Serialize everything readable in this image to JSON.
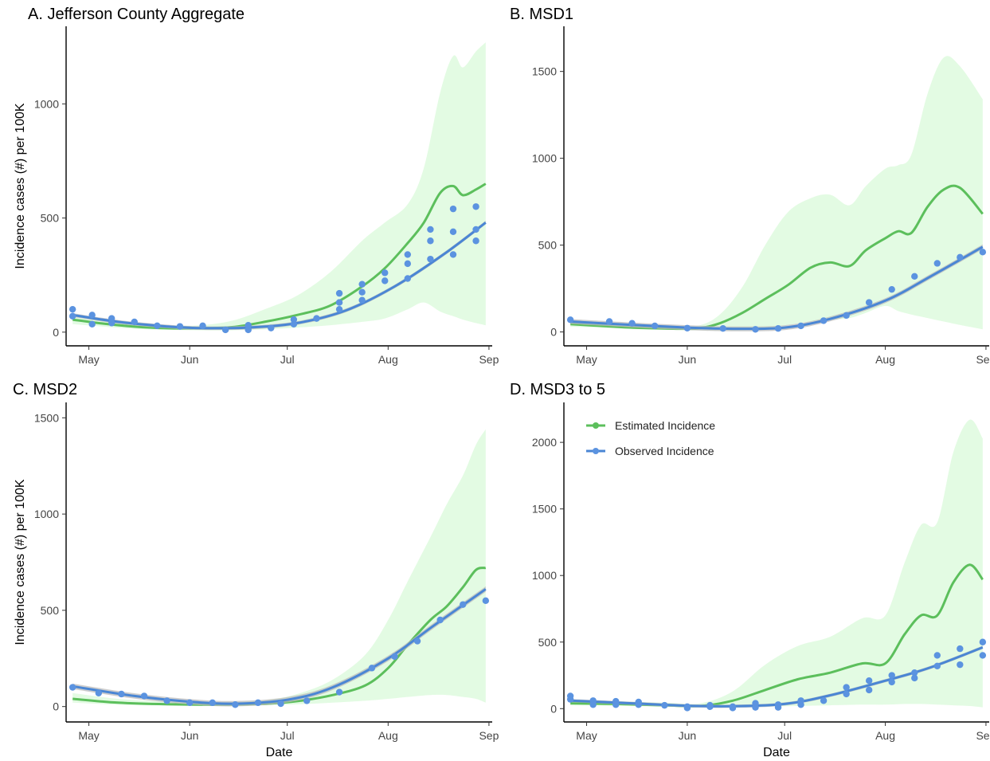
{
  "colors": {
    "estimated": "#5cbf5c",
    "observed": "#4a86d4",
    "observed_points": "#5b93e0",
    "band": "#e3fbe3",
    "ci": "#b8b8b8"
  },
  "legend": {
    "estimated_label": "Estimated Incidence",
    "observed_label": "Observed Incidence"
  },
  "chart_data": [
    {
      "type": "line",
      "title": "A. Jefferson County Aggregate",
      "xlabel": "",
      "ylabel": "Incidence cases (#) per 100K",
      "x_ticks": [
        "May",
        "Jun",
        "Jul",
        "Aug",
        "Sep"
      ],
      "y_ticks": [
        0,
        500,
        1000
      ],
      "xlim": [
        "2020-04-24",
        "2020-09-02"
      ],
      "ylim": [
        -60,
        1340
      ],
      "series": [
        {
          "name": "Estimated Incidence",
          "kind": "line",
          "x": [
            "2020-04-26",
            "2020-05-05",
            "2020-05-15",
            "2020-05-25",
            "2020-06-04",
            "2020-06-14",
            "2020-06-24",
            "2020-07-04",
            "2020-07-14",
            "2020-07-24",
            "2020-07-31",
            "2020-08-07",
            "2020-08-12",
            "2020-08-17",
            "2020-08-21",
            "2020-08-24",
            "2020-08-28",
            "2020-08-31"
          ],
          "y": [
            55,
            38,
            24,
            17,
            17,
            22,
            45,
            75,
            115,
            200,
            280,
            390,
            480,
            610,
            640,
            600,
            625,
            650
          ],
          "band_lower": [
            35,
            25,
            15,
            10,
            8,
            8,
            12,
            20,
            30,
            45,
            60,
            100,
            130,
            90,
            70,
            55,
            40,
            30
          ],
          "band_upper": [
            80,
            60,
            40,
            30,
            30,
            50,
            100,
            160,
            260,
            400,
            480,
            560,
            720,
            1050,
            1210,
            1160,
            1230,
            1270
          ]
        },
        {
          "name": "Observed Incidence",
          "kind": "smooth",
          "x": [
            "2020-04-26",
            "2020-05-10",
            "2020-05-25",
            "2020-06-04",
            "2020-06-19",
            "2020-07-04",
            "2020-07-19",
            "2020-08-03",
            "2020-08-18",
            "2020-08-31"
          ],
          "y": [
            75,
            45,
            25,
            18,
            20,
            40,
            95,
            200,
            340,
            480
          ],
          "ci_halfwidth": 8
        },
        {
          "name": "Observed Incidence",
          "kind": "points",
          "x": [
            "2020-04-26",
            "2020-04-26",
            "2020-05-02",
            "2020-05-02",
            "2020-05-08",
            "2020-05-08",
            "2020-05-15",
            "2020-05-22",
            "2020-05-29",
            "2020-06-05",
            "2020-06-12",
            "2020-06-19",
            "2020-06-19",
            "2020-06-26",
            "2020-07-03",
            "2020-07-03",
            "2020-07-10",
            "2020-07-17",
            "2020-07-17",
            "2020-07-17",
            "2020-07-24",
            "2020-07-24",
            "2020-07-24",
            "2020-07-31",
            "2020-07-31",
            "2020-08-07",
            "2020-08-07",
            "2020-08-07",
            "2020-08-14",
            "2020-08-14",
            "2020-08-14",
            "2020-08-21",
            "2020-08-21",
            "2020-08-21",
            "2020-08-28",
            "2020-08-28",
            "2020-08-28"
          ],
          "y": [
            100,
            70,
            75,
            35,
            60,
            40,
            45,
            28,
            25,
            28,
            10,
            30,
            10,
            18,
            55,
            35,
            60,
            170,
            130,
            100,
            210,
            175,
            140,
            260,
            225,
            340,
            300,
            235,
            450,
            400,
            320,
            540,
            440,
            340,
            550,
            450,
            400
          ]
        }
      ]
    },
    {
      "type": "line",
      "title": "B. MSD1",
      "xlabel": "",
      "ylabel": "",
      "x_ticks": [
        "May",
        "Jun",
        "Jul",
        "Aug",
        "Sep"
      ],
      "y_ticks": [
        0,
        500,
        1000,
        1500
      ],
      "xlim": [
        "2020-04-24",
        "2020-09-02"
      ],
      "ylim": [
        -80,
        1760
      ],
      "series": [
        {
          "name": "Estimated Incidence",
          "kind": "line",
          "x": [
            "2020-04-26",
            "2020-05-05",
            "2020-05-15",
            "2020-05-25",
            "2020-06-04",
            "2020-06-11",
            "2020-06-18",
            "2020-06-25",
            "2020-07-02",
            "2020-07-09",
            "2020-07-15",
            "2020-07-21",
            "2020-07-26",
            "2020-08-01",
            "2020-08-05",
            "2020-08-09",
            "2020-08-14",
            "2020-08-19",
            "2020-08-24",
            "2020-08-31"
          ],
          "y": [
            45,
            35,
            25,
            20,
            20,
            50,
            110,
            190,
            270,
            370,
            400,
            380,
            470,
            540,
            580,
            570,
            720,
            820,
            830,
            680
          ],
          "band_lower": [
            30,
            25,
            18,
            14,
            10,
            8,
            10,
            20,
            40,
            60,
            70,
            80,
            110,
            150,
            120,
            100,
            80,
            60,
            40,
            15
          ],
          "band_upper": [
            60,
            50,
            40,
            35,
            35,
            100,
            260,
            500,
            690,
            770,
            790,
            730,
            840,
            940,
            960,
            1020,
            1370,
            1580,
            1530,
            1340
          ]
        },
        {
          "name": "Observed Incidence",
          "kind": "smooth",
          "x": [
            "2020-04-26",
            "2020-05-15",
            "2020-06-01",
            "2020-06-15",
            "2020-07-01",
            "2020-07-15",
            "2020-08-01",
            "2020-08-15",
            "2020-08-31"
          ],
          "y": [
            60,
            40,
            25,
            18,
            25,
            75,
            180,
            320,
            490
          ],
          "ci_halfwidth": 14
        },
        {
          "name": "Observed Incidence",
          "kind": "points",
          "x": [
            "2020-04-26",
            "2020-05-08",
            "2020-05-15",
            "2020-05-22",
            "2020-06-01",
            "2020-06-12",
            "2020-06-22",
            "2020-06-29",
            "2020-07-06",
            "2020-07-13",
            "2020-07-20",
            "2020-07-27",
            "2020-08-03",
            "2020-08-10",
            "2020-08-17",
            "2020-08-24",
            "2020-08-31"
          ],
          "y": [
            70,
            60,
            50,
            35,
            22,
            20,
            15,
            20,
            35,
            65,
            95,
            170,
            245,
            320,
            395,
            430,
            460
          ]
        }
      ]
    },
    {
      "type": "line",
      "title": "C. MSD2",
      "xlabel": "Date",
      "ylabel": "Incidence cases (#) per 100K",
      "x_ticks": [
        "May",
        "Jun",
        "Jul",
        "Aug",
        "Sep"
      ],
      "y_ticks": [
        0,
        500,
        1000,
        1500
      ],
      "xlim": [
        "2020-04-24",
        "2020-09-02"
      ],
      "ylim": [
        -80,
        1580
      ],
      "series": [
        {
          "name": "Estimated Incidence",
          "kind": "line",
          "x": [
            "2020-04-26",
            "2020-05-10",
            "2020-05-25",
            "2020-06-10",
            "2020-06-25",
            "2020-07-05",
            "2020-07-15",
            "2020-07-25",
            "2020-08-01",
            "2020-08-07",
            "2020-08-14",
            "2020-08-19",
            "2020-08-24",
            "2020-08-28",
            "2020-08-31"
          ],
          "y": [
            40,
            20,
            12,
            10,
            15,
            30,
            60,
            110,
            200,
            320,
            450,
            520,
            620,
            710,
            720
          ],
          "band_lower": [
            20,
            10,
            6,
            5,
            8,
            12,
            20,
            30,
            40,
            50,
            60,
            60,
            50,
            40,
            20
          ],
          "band_upper": [
            70,
            40,
            25,
            22,
            35,
            70,
            140,
            270,
            450,
            650,
            880,
            1050,
            1200,
            1360,
            1440
          ]
        },
        {
          "name": "Observed Incidence",
          "kind": "smooth",
          "x": [
            "2020-04-26",
            "2020-05-15",
            "2020-06-01",
            "2020-06-15",
            "2020-07-01",
            "2020-07-15",
            "2020-08-01",
            "2020-08-15",
            "2020-08-31"
          ],
          "y": [
            105,
            55,
            25,
            15,
            35,
            100,
            250,
            420,
            610
          ],
          "ci_halfwidth": 14
        },
        {
          "name": "Observed Incidence",
          "kind": "points",
          "x": [
            "2020-04-26",
            "2020-05-04",
            "2020-05-11",
            "2020-05-18",
            "2020-05-25",
            "2020-06-01",
            "2020-06-08",
            "2020-06-15",
            "2020-06-22",
            "2020-06-29",
            "2020-07-07",
            "2020-07-17",
            "2020-07-27",
            "2020-08-03",
            "2020-08-10",
            "2020-08-17",
            "2020-08-24",
            "2020-08-31"
          ],
          "y": [
            100,
            70,
            65,
            55,
            30,
            20,
            20,
            10,
            20,
            15,
            30,
            75,
            200,
            260,
            340,
            450,
            530,
            550
          ]
        }
      ]
    },
    {
      "type": "line",
      "title": "D. MSD3 to 5",
      "xlabel": "Date",
      "ylabel": "",
      "x_ticks": [
        "May",
        "Jun",
        "Jul",
        "Aug",
        "Sep"
      ],
      "y_ticks": [
        0,
        500,
        1000,
        1500,
        2000
      ],
      "xlim": [
        "2020-04-24",
        "2020-09-02"
      ],
      "ylim": [
        -100,
        2300
      ],
      "series": [
        {
          "name": "Estimated Incidence",
          "kind": "line",
          "x": [
            "2020-04-26",
            "2020-05-10",
            "2020-05-25",
            "2020-06-05",
            "2020-06-15",
            "2020-06-25",
            "2020-07-05",
            "2020-07-15",
            "2020-07-25",
            "2020-08-01",
            "2020-08-07",
            "2020-08-12",
            "2020-08-17",
            "2020-08-22",
            "2020-08-27",
            "2020-08-31"
          ],
          "y": [
            40,
            35,
            25,
            20,
            60,
            140,
            220,
            270,
            340,
            340,
            560,
            700,
            700,
            950,
            1080,
            970
          ],
          "band_lower": [
            25,
            22,
            15,
            10,
            12,
            15,
            20,
            25,
            30,
            30,
            35,
            35,
            30,
            25,
            20,
            10
          ],
          "band_upper": [
            65,
            55,
            45,
            40,
            130,
            330,
            470,
            540,
            680,
            700,
            1100,
            1380,
            1400,
            1930,
            2170,
            2030
          ]
        },
        {
          "name": "Observed Incidence",
          "kind": "smooth",
          "x": [
            "2020-04-26",
            "2020-05-15",
            "2020-06-01",
            "2020-06-15",
            "2020-07-01",
            "2020-07-15",
            "2020-08-01",
            "2020-08-15",
            "2020-08-31"
          ],
          "y": [
            60,
            40,
            22,
            18,
            35,
            100,
            210,
            310,
            460
          ],
          "ci_halfwidth": 12
        },
        {
          "name": "Observed Incidence",
          "kind": "points",
          "x": [
            "2020-04-26",
            "2020-04-26",
            "2020-05-03",
            "2020-05-03",
            "2020-05-10",
            "2020-05-10",
            "2020-05-17",
            "2020-05-17",
            "2020-05-25",
            "2020-06-01",
            "2020-06-01",
            "2020-06-08",
            "2020-06-08",
            "2020-06-15",
            "2020-06-15",
            "2020-06-22",
            "2020-06-22",
            "2020-06-29",
            "2020-06-29",
            "2020-07-06",
            "2020-07-06",
            "2020-07-13",
            "2020-07-20",
            "2020-07-20",
            "2020-07-27",
            "2020-07-27",
            "2020-08-03",
            "2020-08-03",
            "2020-08-10",
            "2020-08-10",
            "2020-08-17",
            "2020-08-17",
            "2020-08-24",
            "2020-08-24",
            "2020-08-31",
            "2020-08-31"
          ],
          "y": [
            95,
            70,
            60,
            30,
            55,
            30,
            50,
            30,
            25,
            15,
            5,
            25,
            15,
            15,
            5,
            40,
            10,
            30,
            10,
            60,
            30,
            60,
            160,
            110,
            210,
            140,
            250,
            200,
            270,
            230,
            400,
            320,
            450,
            330,
            500,
            400
          ]
        }
      ]
    }
  ]
}
